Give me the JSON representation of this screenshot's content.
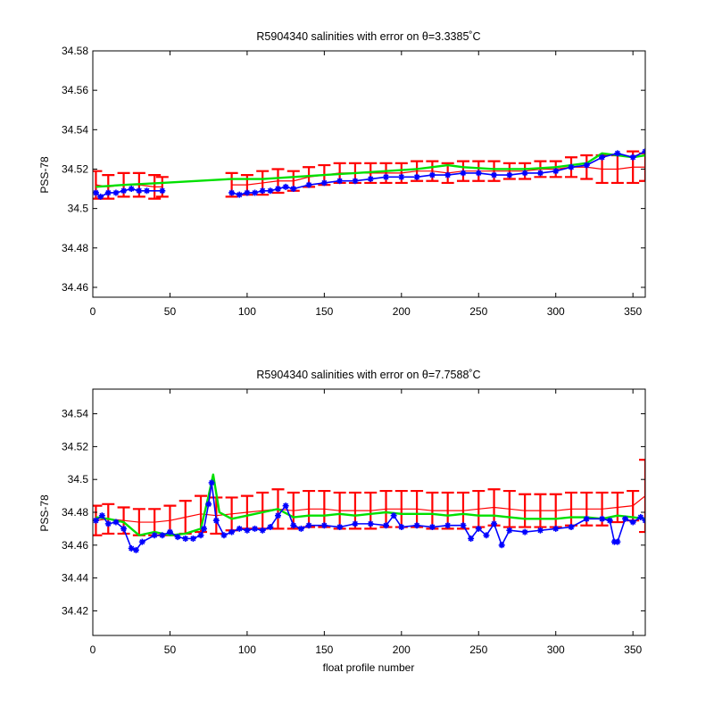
{
  "chart_data": [
    {
      "type": "line",
      "title": "R5904340 salinities with error on θ=3.3385˚C",
      "xlabel": "",
      "ylabel": "PSS-78",
      "xlim": [
        0,
        358
      ],
      "ylim": [
        34.455,
        34.58
      ],
      "xticks": [
        0,
        50,
        100,
        150,
        200,
        250,
        300,
        350
      ],
      "yticks": [
        34.46,
        34.48,
        34.5,
        34.52,
        34.54,
        34.56,
        34.58
      ],
      "ytick_labels": [
        "34.46",
        "34.48",
        "34.5",
        "34.52",
        "34.54",
        "34.56",
        "34.58"
      ],
      "grid": false,
      "gaps": [
        [
          45,
          88
        ]
      ],
      "series": [
        {
          "role": "adjusted-salinity-with-error",
          "color": "#ff0000",
          "marker": "errorbar",
          "x": [
            2,
            10,
            20,
            30,
            40,
            45,
            90,
            100,
            110,
            120,
            130,
            140,
            150,
            160,
            170,
            180,
            190,
            200,
            210,
            220,
            230,
            240,
            250,
            260,
            270,
            280,
            290,
            300,
            310,
            320,
            330,
            340,
            350,
            358
          ],
          "values": [
            34.512,
            34.511,
            34.512,
            34.512,
            34.511,
            34.511,
            34.512,
            34.512,
            34.513,
            34.514,
            34.514,
            34.516,
            34.517,
            34.518,
            34.518,
            34.518,
            34.518,
            34.518,
            34.519,
            34.519,
            34.518,
            34.519,
            34.519,
            34.519,
            34.519,
            34.519,
            34.52,
            34.52,
            34.521,
            34.521,
            34.52,
            34.52,
            34.521,
            34.521
          ],
          "errors": [
            0.007,
            0.006,
            0.006,
            0.006,
            0.006,
            0.005,
            0.006,
            0.005,
            0.006,
            0.006,
            0.005,
            0.005,
            0.005,
            0.005,
            0.005,
            0.005,
            0.005,
            0.005,
            0.005,
            0.005,
            0.005,
            0.005,
            0.005,
            0.005,
            0.004,
            0.004,
            0.004,
            0.004,
            0.005,
            0.006,
            0.007,
            0.007,
            0.008,
            0.007
          ]
        },
        {
          "role": "climatology",
          "color": "#00e000",
          "marker": "line",
          "x": [
            2,
            20,
            45,
            90,
            110,
            130,
            150,
            170,
            190,
            210,
            230,
            240,
            260,
            280,
            300,
            320,
            330,
            340,
            350,
            358
          ],
          "values": [
            34.511,
            34.512,
            34.513,
            34.515,
            34.515,
            34.516,
            34.517,
            34.518,
            34.519,
            34.52,
            34.522,
            34.521,
            34.52,
            34.52,
            34.521,
            34.523,
            34.528,
            34.527,
            34.526,
            34.527
          ]
        },
        {
          "role": "raw-salinity",
          "color": "#0000ff",
          "marker": "star",
          "x": [
            2,
            5,
            10,
            15,
            20,
            25,
            30,
            35,
            45,
            90,
            95,
            100,
            105,
            110,
            115,
            120,
            125,
            130,
            140,
            150,
            160,
            170,
            180,
            190,
            200,
            210,
            220,
            230,
            240,
            250,
            260,
            270,
            280,
            290,
            300,
            310,
            320,
            330,
            340,
            350,
            358
          ],
          "values": [
            34.508,
            34.506,
            34.508,
            34.508,
            34.509,
            34.51,
            34.509,
            34.509,
            34.509,
            34.508,
            34.507,
            34.508,
            34.508,
            34.509,
            34.509,
            34.51,
            34.511,
            34.51,
            34.512,
            34.513,
            34.514,
            34.514,
            34.515,
            34.516,
            34.516,
            34.516,
            34.517,
            34.517,
            34.518,
            34.518,
            34.517,
            34.517,
            34.518,
            34.518,
            34.519,
            34.521,
            34.522,
            34.526,
            34.528,
            34.526,
            34.529
          ]
        }
      ]
    },
    {
      "type": "line",
      "title": "R5904340 salinities with error on θ=7.7588˚C",
      "xlabel": "float profile number",
      "ylabel": "PSS-78",
      "xlim": [
        0,
        358
      ],
      "ylim": [
        34.405,
        34.555
      ],
      "xticks": [
        0,
        50,
        100,
        150,
        200,
        250,
        300,
        350
      ],
      "yticks": [
        34.42,
        34.44,
        34.46,
        34.48,
        34.5,
        34.52,
        34.54
      ],
      "ytick_labels": [
        "34.42",
        "34.44",
        "34.46",
        "34.48",
        "34.5",
        "34.52",
        "34.54"
      ],
      "grid": false,
      "gaps": [],
      "series": [
        {
          "role": "adjusted-salinity-with-error",
          "color": "#ff0000",
          "marker": "errorbar",
          "x": [
            2,
            10,
            20,
            30,
            40,
            50,
            60,
            70,
            80,
            90,
            100,
            110,
            120,
            130,
            140,
            150,
            160,
            170,
            180,
            190,
            200,
            210,
            220,
            230,
            240,
            250,
            260,
            270,
            280,
            290,
            300,
            310,
            320,
            330,
            340,
            350,
            358
          ],
          "values": [
            34.475,
            34.476,
            34.475,
            34.474,
            34.474,
            34.475,
            34.477,
            34.479,
            34.478,
            34.479,
            34.48,
            34.481,
            34.482,
            34.481,
            34.482,
            34.482,
            34.481,
            34.481,
            34.481,
            34.482,
            34.482,
            34.482,
            34.481,
            34.481,
            34.481,
            34.482,
            34.483,
            34.482,
            34.481,
            34.481,
            34.481,
            34.482,
            34.482,
            34.482,
            34.483,
            34.484,
            34.49
          ],
          "errors": [
            0.009,
            0.009,
            0.008,
            0.008,
            0.008,
            0.009,
            0.01,
            0.011,
            0.011,
            0.01,
            0.01,
            0.011,
            0.012,
            0.011,
            0.011,
            0.011,
            0.011,
            0.011,
            0.011,
            0.011,
            0.011,
            0.011,
            0.011,
            0.011,
            0.011,
            0.011,
            0.011,
            0.011,
            0.01,
            0.01,
            0.01,
            0.01,
            0.01,
            0.01,
            0.009,
            0.009,
            0.022
          ]
        },
        {
          "role": "climatology",
          "color": "#00e000",
          "marker": "line",
          "x": [
            2,
            10,
            20,
            30,
            40,
            50,
            60,
            70,
            75,
            78,
            82,
            90,
            100,
            110,
            120,
            130,
            140,
            150,
            160,
            170,
            180,
            190,
            200,
            210,
            220,
            230,
            240,
            250,
            260,
            270,
            280,
            290,
            300,
            310,
            320,
            330,
            340,
            350,
            358
          ],
          "values": [
            34.477,
            34.476,
            34.474,
            34.466,
            34.468,
            34.466,
            34.467,
            34.47,
            34.49,
            34.503,
            34.48,
            34.476,
            34.478,
            34.48,
            34.482,
            34.477,
            34.478,
            34.478,
            34.479,
            34.478,
            34.479,
            34.48,
            34.479,
            34.479,
            34.479,
            34.478,
            34.479,
            34.478,
            34.478,
            34.477,
            34.476,
            34.476,
            34.476,
            34.477,
            34.477,
            34.476,
            34.478,
            34.477,
            34.476
          ]
        },
        {
          "role": "raw-salinity",
          "color": "#0000ff",
          "marker": "star",
          "x": [
            2,
            6,
            10,
            15,
            20,
            25,
            28,
            32,
            40,
            45,
            50,
            55,
            60,
            65,
            70,
            72,
            75,
            77,
            80,
            85,
            90,
            95,
            100,
            105,
            110,
            115,
            120,
            125,
            130,
            135,
            140,
            150,
            160,
            170,
            180,
            190,
            195,
            200,
            210,
            220,
            230,
            240,
            245,
            250,
            255,
            260,
            265,
            270,
            280,
            290,
            300,
            310,
            320,
            330,
            335,
            338,
            340,
            345,
            350,
            355,
            358
          ],
          "values": [
            34.475,
            34.478,
            34.473,
            34.474,
            34.47,
            34.458,
            34.457,
            34.462,
            34.466,
            34.466,
            34.468,
            34.465,
            34.464,
            34.464,
            34.466,
            34.47,
            34.485,
            34.498,
            34.475,
            34.466,
            34.468,
            34.47,
            34.469,
            34.47,
            34.469,
            34.471,
            34.478,
            34.484,
            34.472,
            34.47,
            34.472,
            34.472,
            34.471,
            34.473,
            34.473,
            34.472,
            34.478,
            34.471,
            34.472,
            34.471,
            34.472,
            34.472,
            34.464,
            34.47,
            34.466,
            34.473,
            34.46,
            34.469,
            34.468,
            34.469,
            34.47,
            34.471,
            34.476,
            34.476,
            34.475,
            34.462,
            34.462,
            34.476,
            34.474,
            34.477,
            34.475
          ]
        }
      ]
    }
  ]
}
